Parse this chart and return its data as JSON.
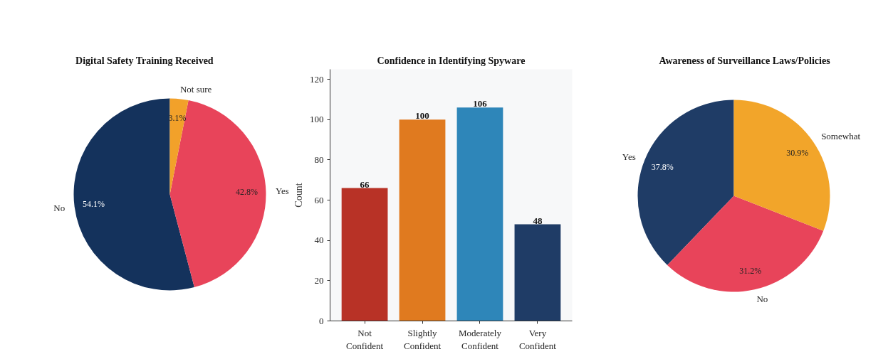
{
  "chart_data": [
    {
      "type": "pie",
      "title": "Digital Safety Training Received",
      "categories": [
        "No",
        "Yes",
        "Not sure"
      ],
      "values": [
        54.1,
        42.8,
        3.1
      ],
      "colors": [
        "#14325c",
        "#e8445a",
        "#f2a12a"
      ],
      "value_labels": [
        "54.1%",
        "42.8%",
        "3.1%"
      ]
    },
    {
      "type": "bar",
      "title": "Confidence in Identifying Spyware",
      "ylabel": "Count",
      "categories": [
        "Not\nConfident",
        "Slightly\nConfident",
        "Moderately\nConfident",
        "Very\nConfident"
      ],
      "values": [
        66,
        100,
        106,
        48
      ],
      "colors": [
        "#b83226",
        "#e07a1f",
        "#2e86b9",
        "#1f3c66"
      ],
      "ylim": [
        0,
        125
      ],
      "yticks": [
        0,
        20,
        40,
        60,
        80,
        100,
        120
      ],
      "data_labels": true,
      "grid": false
    },
    {
      "type": "pie",
      "title": "Awareness of Surveillance Laws/Policies",
      "categories": [
        "Yes",
        "No",
        "Somewhat"
      ],
      "values": [
        37.8,
        31.2,
        30.9
      ],
      "colors": [
        "#1f3c66",
        "#e8445a",
        "#f2a52a"
      ],
      "value_labels": [
        "37.8%",
        "31.2%",
        "30.9%"
      ]
    }
  ]
}
